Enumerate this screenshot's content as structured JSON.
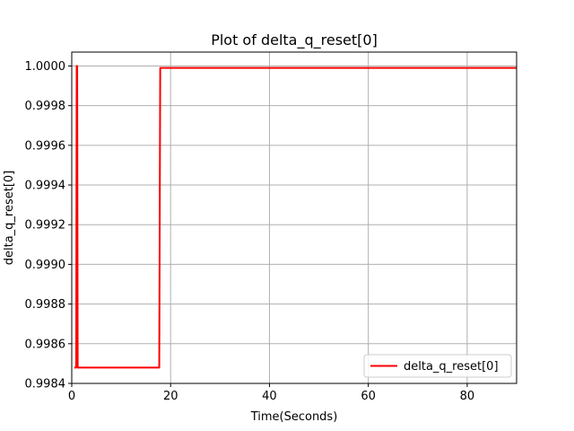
{
  "chart_data": {
    "type": "line",
    "title": "Plot of delta_q_reset[0]",
    "xlabel": "Time(Seconds)",
    "ylabel": "delta_q_reset[0]",
    "xlim": [
      0,
      90
    ],
    "ylim": [
      0.9984,
      1.00007
    ],
    "x_ticks": [
      0,
      20,
      40,
      60,
      80
    ],
    "x_tick_labels": [
      "0",
      "20",
      "40",
      "60",
      "80"
    ],
    "y_ticks": [
      0.9984,
      0.9986,
      0.9988,
      0.999,
      0.9992,
      0.9994,
      0.9996,
      0.9998,
      1.0
    ],
    "y_tick_labels": [
      "0.9984",
      "0.9986",
      "0.9988",
      "0.9990",
      "0.9992",
      "0.9994",
      "0.9996",
      "0.9998",
      "1.0000"
    ],
    "grid": true,
    "legend_position": "lower-right",
    "series": [
      {
        "name": "delta_q_reset[0]",
        "color": "#ff0000",
        "x": [
          0.5,
          0.9,
          1.0,
          1.1,
          1.2,
          17.5,
          17.7,
          17.9,
          18.1,
          18.3,
          90
        ],
        "y": [
          0.99848,
          0.99848,
          1.0,
          1.0,
          0.99848,
          0.99848,
          0.99848,
          0.99999,
          0.99999,
          0.99999,
          0.99999
        ]
      }
    ]
  }
}
